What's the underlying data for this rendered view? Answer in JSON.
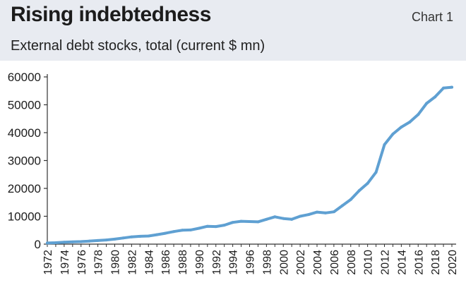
{
  "header": {
    "title": "Rising indebtedness",
    "subtitle": "External debt stocks, total (current $ mn)",
    "chart_label": "Chart 1"
  },
  "colors": {
    "header_bg": "#e8ebf1",
    "line": "#5fa0d2",
    "axis": "#333333",
    "text": "#1c1c1c"
  },
  "chart_data": {
    "type": "line",
    "title": "Rising indebtedness",
    "subtitle": "External debt stocks, total (current $ mn)",
    "xlabel": "",
    "ylabel": "",
    "ylim": [
      0,
      60000
    ],
    "y_ticks": [
      0,
      10000,
      20000,
      30000,
      40000,
      50000,
      60000
    ],
    "x_tick_labels": [
      "1972",
      "1974",
      "1976",
      "1978",
      "1980",
      "1982",
      "1984",
      "1986",
      "1988",
      "1990",
      "1992",
      "1994",
      "1996",
      "1998",
      "2000",
      "2002",
      "2004",
      "2006",
      "2008",
      "2010",
      "2012",
      "2014",
      "2016",
      "2018",
      "2020"
    ],
    "grid": false,
    "legend": "none",
    "series": [
      {
        "x": [
          1972,
          1973,
          1974,
          1975,
          1976,
          1977,
          1978,
          1979,
          1980,
          1981,
          1982,
          1983,
          1984,
          1985,
          1986,
          1987,
          1988,
          1989,
          1990,
          1991,
          1992,
          1993,
          1994,
          1995,
          1996,
          1997,
          1998,
          1999,
          2000,
          2001,
          2002,
          2003,
          2004,
          2005,
          2006,
          2007,
          2008,
          2009,
          2010,
          2011,
          2012,
          2013,
          2014,
          2015,
          2016,
          2017,
          2018,
          2019,
          2020
        ],
        "values": [
          400,
          500,
          700,
          800,
          900,
          1100,
          1300,
          1500,
          1800,
          2200,
          2600,
          2800,
          2900,
          3400,
          3900,
          4500,
          5000,
          5100,
          5700,
          6400,
          6300,
          6800,
          7800,
          8200,
          8100,
          8000,
          8900,
          9800,
          9200,
          8900,
          10000,
          10600,
          11500,
          11200,
          11600,
          13800,
          16000,
          19200,
          21800,
          25800,
          35700,
          39500,
          42000,
          43800,
          46500,
          50500,
          52800,
          56000,
          56300
        ]
      }
    ]
  }
}
